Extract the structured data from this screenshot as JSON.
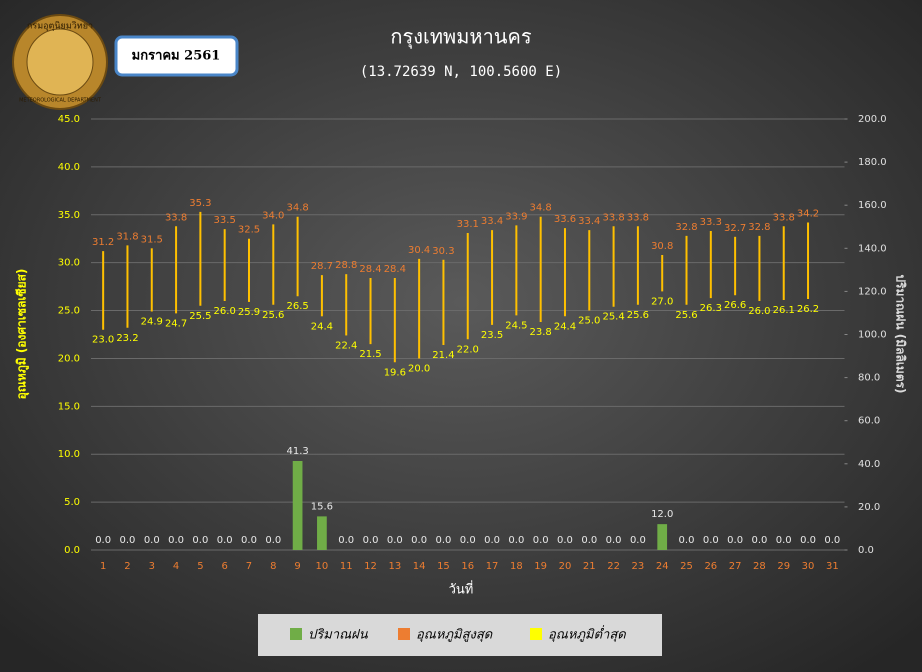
{
  "logo": {
    "top": "กรมอุตุนิยมวิทยา",
    "bottom": "METEOROLOGICAL DEPARTMENT"
  },
  "month": "มกราคม 2561",
  "chart_data": {
    "type": "bar",
    "title": "กรุงเทพมหานคร",
    "subtitle": "(13.72639 N, 100.5600 E)",
    "x_label": "วันที่",
    "y_label": "อุณหภูมิ (องศาเซลเซียส)",
    "y2_label": "ปริมาณฝน (มิลลิเมตร)",
    "categories": [
      "1",
      "2",
      "3",
      "4",
      "5",
      "6",
      "7",
      "8",
      "9",
      "10",
      "11",
      "12",
      "13",
      "14",
      "15",
      "16",
      "17",
      "18",
      "19",
      "20",
      "21",
      "22",
      "23",
      "24",
      "25",
      "26",
      "27",
      "28",
      "29",
      "30",
      "31"
    ],
    "range_color": "#ffc000",
    "series": [
      {
        "name": "ปริมาณฝน",
        "color": "#70ad47",
        "axis": "y2",
        "values": [
          0,
          0,
          0,
          0,
          0,
          0,
          0,
          0,
          41.3,
          15.6,
          0,
          0,
          0,
          0,
          0,
          0,
          0,
          0,
          0,
          0,
          0,
          0,
          0,
          12,
          0,
          0,
          0,
          0,
          0,
          0,
          0
        ],
        "value_labels": [
          "0.0",
          "0.0",
          "0.0",
          "0.0",
          "0.0",
          "0.0",
          "0.0",
          "0.0",
          "41.3",
          "15.6",
          "0.0",
          "0.0",
          "0.0",
          "0.0",
          "0.0",
          "0.0",
          "0.0",
          "0.0",
          "0.0",
          "0.0",
          "0.0",
          "0.0",
          "0.0",
          "12.0",
          "0.0",
          "0.0",
          "0.0",
          "0.0",
          "0.0",
          "0.0",
          "0.0"
        ]
      },
      {
        "name": "อุณหภูมิสูงสุด",
        "color": "#ed7d31",
        "values": [
          31.2,
          31.8,
          31.5,
          33.8,
          35.3,
          33.5,
          32.5,
          34,
          34.8,
          28.7,
          28.8,
          28.4,
          28.4,
          30.4,
          30.3,
          33.1,
          33.4,
          33.9,
          34.8,
          33.6,
          33.4,
          33.8,
          33.8,
          30.8,
          32.8,
          33.3,
          32.7,
          32.8,
          33.8,
          34.2,
          null
        ],
        "value_labels": [
          "31.2",
          "31.8",
          "31.5",
          "33.8",
          "35.3",
          "33.5",
          "32.5",
          "34.0",
          "34.8",
          "28.7",
          "28.8",
          "28.4",
          "28.4",
          "30.4",
          "30.3",
          "33.1",
          "33.4",
          "33.9",
          "34.8",
          "33.6",
          "33.4",
          "33.8",
          "33.8",
          "30.8",
          "32.8",
          "33.3",
          "32.7",
          "32.8",
          "33.8",
          "34.2",
          null
        ]
      },
      {
        "name": "อุณหภูมิต่ำสุด",
        "color": "#ffff00",
        "values": [
          23,
          23.2,
          24.9,
          24.7,
          25.5,
          26,
          25.9,
          25.6,
          26.5,
          24.4,
          22.4,
          21.5,
          19.6,
          20,
          21.4,
          22,
          23.5,
          24.5,
          23.8,
          24.4,
          25,
          25.4,
          25.6,
          27,
          25.6,
          26.3,
          26.6,
          26,
          26.1,
          26.2,
          null
        ],
        "value_labels": [
          "23.0",
          "23.2",
          "24.9",
          "24.7",
          "25.5",
          "26.0",
          "25.9",
          "25.6",
          "26.5",
          "24.4",
          "22.4",
          "21.5",
          "19.6",
          "20.0",
          "21.4",
          "22.0",
          "23.5",
          "24.5",
          "23.8",
          "24.4",
          "25.0",
          "25.4",
          "25.6",
          "27.0",
          "25.6",
          "26.3",
          "26.6",
          "26.0",
          "26.1",
          "26.2",
          null
        ]
      }
    ],
    "ylim": [
      0,
      45
    ],
    "yticks": [
      {
        "value": 0,
        "label": "0.0"
      },
      {
        "value": 5,
        "label": "5.0"
      },
      {
        "value": 10,
        "label": "10.0"
      },
      {
        "value": 15,
        "label": "15.0"
      },
      {
        "value": 20,
        "label": "20.0"
      },
      {
        "value": 25,
        "label": "25.0"
      },
      {
        "value": 30,
        "label": "30.0"
      },
      {
        "value": 35,
        "label": "35.0"
      },
      {
        "value": 40,
        "label": "40.0"
      },
      {
        "value": 45,
        "label": "45.0"
      }
    ],
    "y2lim": [
      0,
      200
    ],
    "y2ticks": [
      {
        "value": 0,
        "label": "0.0"
      },
      {
        "value": 20,
        "label": "20.0"
      },
      {
        "value": 40,
        "label": "40.0"
      },
      {
        "value": 60,
        "label": "60.0"
      },
      {
        "value": 80,
        "label": "80.0"
      },
      {
        "value": 100,
        "label": "100.0"
      },
      {
        "value": 120,
        "label": "120.0"
      },
      {
        "value": 140,
        "label": "140.0"
      },
      {
        "value": 160,
        "label": "160.0"
      },
      {
        "value": 180,
        "label": "180.0"
      },
      {
        "value": 200,
        "label": "200.0"
      }
    ],
    "grid": true
  }
}
